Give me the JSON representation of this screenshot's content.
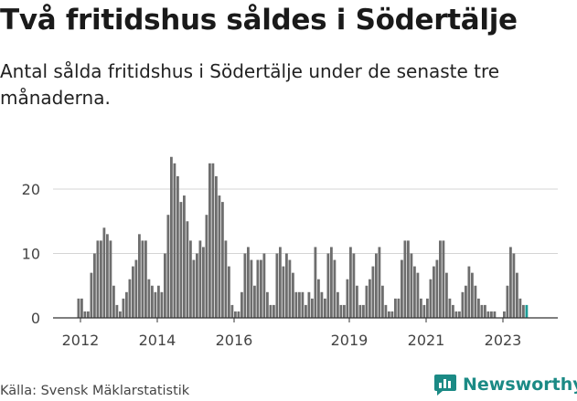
{
  "title": "Två fritidshus såldes i Södertälje",
  "subtitle": "Antal sålda fritidshus i Södertälje under de senaste tre månaderna.",
  "source": "Källa: Svensk Mäklarstatistik",
  "brand": "Newsworthy",
  "colors": {
    "bar": "#6e6e6e",
    "highlight": "#1b9c96",
    "grid": "#d4d4d4",
    "brand": "#1b8a85"
  },
  "chart_data": {
    "type": "bar",
    "title": "Två fritidshus såldes i Södertälje",
    "xlabel": "",
    "ylabel": "",
    "ylim": [
      0,
      25
    ],
    "grid": true,
    "yticks": [
      0,
      10,
      20
    ],
    "ytick_labels": [
      "0",
      "10",
      "20"
    ],
    "xticks": [
      2012,
      2014,
      2016,
      2019,
      2021,
      2023
    ],
    "xtick_labels": [
      "2012",
      "2014",
      "2016",
      "2019",
      "2021",
      "2023"
    ],
    "x_start": 2011.917,
    "x_step": 0.08333,
    "values": [
      3,
      3,
      1,
      1,
      7,
      10,
      12,
      12,
      14,
      13,
      12,
      5,
      2,
      1,
      3,
      4,
      6,
      8,
      9,
      13,
      12,
      12,
      6,
      5,
      4,
      5,
      4,
      10,
      16,
      25,
      24,
      22,
      18,
      19,
      15,
      12,
      9,
      10,
      12,
      11,
      16,
      24,
      24,
      22,
      19,
      18,
      12,
      8,
      2,
      1,
      1,
      4,
      10,
      11,
      9,
      5,
      9,
      9,
      10,
      4,
      2,
      2,
      10,
      11,
      8,
      10,
      9,
      7,
      4,
      4,
      4,
      2,
      4,
      3,
      11,
      6,
      4,
      3,
      10,
      11,
      9,
      4,
      2,
      2,
      6,
      11,
      10,
      5,
      2,
      2,
      5,
      6,
      8,
      10,
      11,
      5,
      2,
      1,
      1,
      3,
      3,
      9,
      12,
      12,
      10,
      8,
      7,
      3,
      2,
      3,
      6,
      8,
      9,
      12,
      12,
      7,
      3,
      2,
      1,
      1,
      4,
      5,
      8,
      7,
      5,
      3,
      2,
      2,
      1,
      1,
      1,
      0,
      0,
      1,
      5,
      11,
      10,
      7,
      3,
      2,
      2
    ],
    "annotation": {
      "index": 142,
      "label": "2"
    }
  }
}
